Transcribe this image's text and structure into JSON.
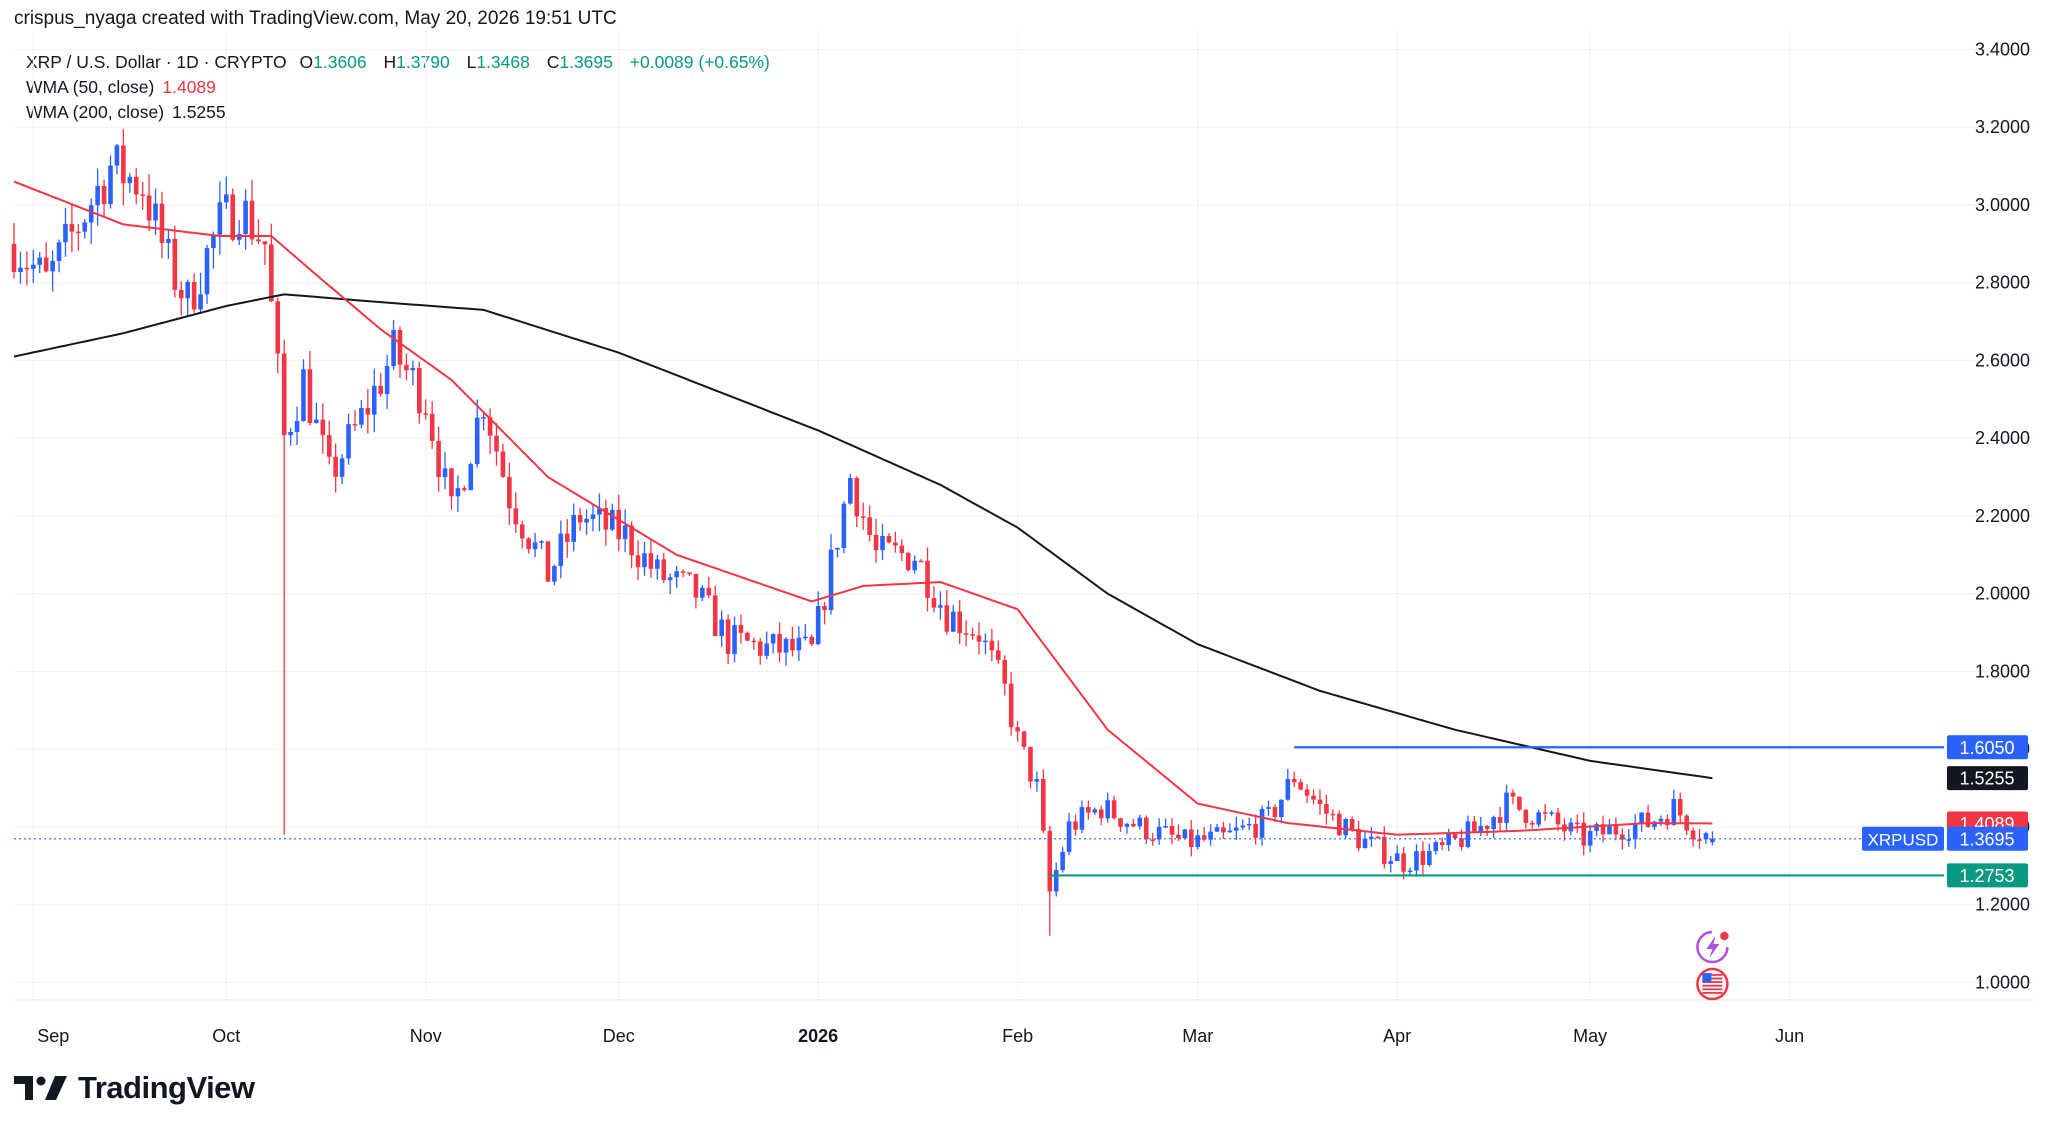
{
  "header": {
    "credit": "crispus_nyaga created with TradingView.com, May 20, 2026 19:51 UTC"
  },
  "legend": {
    "symbol": "XRP / U.S. Dollar · 1D · CRYPTO",
    "open_label": "O",
    "open": "1.3606",
    "high_label": "H",
    "high": "1.3790",
    "low_label": "L",
    "low": "1.3468",
    "close_label": "C",
    "close": "1.3695",
    "change": "+0.0089 (+0.65%)",
    "wma50_label": "WMA (50, close)",
    "wma50": "1.4089",
    "wma200_label": "WMA (200, close)",
    "wma200": "1.5255"
  },
  "brand": {
    "name": "TradingView",
    "logo_icon": "tradingview-logo-icon"
  },
  "colors": {
    "up": "#089981",
    "down": "#f23645",
    "up_candle": "#2962ff",
    "down_candle": "#f23645",
    "wma50": "#f23645",
    "wma200": "#131722",
    "resistance": "#2962ff",
    "support": "#089981",
    "grid": "#f0f3fa"
  },
  "chart_data": {
    "type": "candlestick",
    "symbol": "XRPUSD",
    "interval": "1D",
    "x_tick_labels": [
      "Sep",
      "Oct",
      "Nov",
      "Dec",
      "2026",
      "Feb",
      "Mar",
      "Apr",
      "May",
      "Jun"
    ],
    "x_tick_dates": [
      "2025-09-01",
      "2025-10-01",
      "2025-11-01",
      "2025-12-01",
      "2026-01-01",
      "2026-02-01",
      "2026-03-01",
      "2026-04-01",
      "2026-05-01",
      "2026-06-01"
    ],
    "x_range": [
      "2025-08-29",
      "2026-06-25"
    ],
    "y_tick_labels": [
      "1.0000",
      "1.2000",
      "1.4000",
      "1.6000",
      "1.8000",
      "2.0000",
      "2.2000",
      "2.4000",
      "2.6000",
      "2.8000",
      "3.0000",
      "3.2000",
      "3.4000"
    ],
    "ylim": [
      0.96,
      3.45
    ],
    "price_anchors": [
      [
        "2025-08-29",
        2.9
      ],
      [
        "2025-09-03",
        2.8
      ],
      [
        "2025-09-08",
        2.95
      ],
      [
        "2025-09-13",
        3.1
      ],
      [
        "2025-09-18",
        3.05
      ],
      [
        "2025-09-22",
        2.85
      ],
      [
        "2025-09-25",
        2.75
      ],
      [
        "2025-09-30",
        2.95
      ],
      [
        "2025-10-03",
        3.0
      ],
      [
        "2025-10-07",
        2.9
      ],
      [
        "2025-10-10",
        2.4
      ],
      [
        "2025-10-13",
        2.55
      ],
      [
        "2025-10-17",
        2.3
      ],
      [
        "2025-10-22",
        2.45
      ],
      [
        "2025-10-27",
        2.62
      ],
      [
        "2025-11-01",
        2.5
      ],
      [
        "2025-11-05",
        2.2
      ],
      [
        "2025-11-10",
        2.5
      ],
      [
        "2025-11-14",
        2.25
      ],
      [
        "2025-11-20",
        2.05
      ],
      [
        "2025-11-25",
        2.2
      ],
      [
        "2025-12-02",
        2.15
      ],
      [
        "2025-12-07",
        2.05
      ],
      [
        "2025-12-13",
        2.0
      ],
      [
        "2025-12-18",
        1.88
      ],
      [
        "2025-12-24",
        1.86
      ],
      [
        "2025-12-31",
        1.85
      ],
      [
        "2026-01-02",
        2.0
      ],
      [
        "2026-01-06",
        2.3
      ],
      [
        "2026-01-10",
        2.1
      ],
      [
        "2026-01-16",
        2.1
      ],
      [
        "2026-01-21",
        1.95
      ],
      [
        "2026-01-26",
        1.9
      ],
      [
        "2026-01-30",
        1.75
      ],
      [
        "2026-02-01",
        1.62
      ],
      [
        "2026-02-04",
        1.5
      ],
      [
        "2026-02-06",
        1.23
      ],
      [
        "2026-02-09",
        1.4
      ],
      [
        "2026-02-14",
        1.45
      ],
      [
        "2026-02-20",
        1.4
      ],
      [
        "2026-02-27",
        1.36
      ],
      [
        "2026-03-05",
        1.37
      ],
      [
        "2026-03-12",
        1.42
      ],
      [
        "2026-03-16",
        1.53
      ],
      [
        "2026-03-20",
        1.45
      ],
      [
        "2026-03-26",
        1.37
      ],
      [
        "2026-04-02",
        1.31
      ],
      [
        "2026-04-08",
        1.34
      ],
      [
        "2026-04-14",
        1.4
      ],
      [
        "2026-04-18",
        1.46
      ],
      [
        "2026-04-24",
        1.42
      ],
      [
        "2026-04-30",
        1.37
      ],
      [
        "2026-05-06",
        1.4
      ],
      [
        "2026-05-10",
        1.41
      ],
      [
        "2026-05-14",
        1.45
      ],
      [
        "2026-05-17",
        1.4
      ],
      [
        "2026-05-20",
        1.3695
      ]
    ],
    "spike_lows": [
      [
        "2025-10-10",
        1.38
      ],
      [
        "2026-02-06",
        1.12
      ]
    ],
    "wma50_points": [
      [
        "2025-08-29",
        3.06
      ],
      [
        "2025-09-15",
        2.95
      ],
      [
        "2025-09-30",
        2.92
      ],
      [
        "2025-10-08",
        2.92
      ],
      [
        "2025-10-15",
        2.82
      ],
      [
        "2025-10-25",
        2.68
      ],
      [
        "2025-11-05",
        2.55
      ],
      [
        "2025-11-20",
        2.3
      ],
      [
        "2025-12-10",
        2.1
      ],
      [
        "2025-12-31",
        1.98
      ],
      [
        "2026-01-08",
        2.02
      ],
      [
        "2026-01-20",
        2.03
      ],
      [
        "2026-02-01",
        1.96
      ],
      [
        "2026-02-15",
        1.65
      ],
      [
        "2026-03-01",
        1.46
      ],
      [
        "2026-03-15",
        1.41
      ],
      [
        "2026-04-01",
        1.38
      ],
      [
        "2026-04-20",
        1.39
      ],
      [
        "2026-05-10",
        1.41
      ],
      [
        "2026-05-20",
        1.4089
      ]
    ],
    "wma200_points": [
      [
        "2025-08-29",
        2.61
      ],
      [
        "2025-09-15",
        2.67
      ],
      [
        "2025-10-01",
        2.74
      ],
      [
        "2025-10-10",
        2.77
      ],
      [
        "2025-10-25",
        2.75
      ],
      [
        "2025-11-10",
        2.73
      ],
      [
        "2025-12-01",
        2.62
      ],
      [
        "2026-01-01",
        2.42
      ],
      [
        "2026-01-20",
        2.28
      ],
      [
        "2026-02-01",
        2.17
      ],
      [
        "2026-02-15",
        2.0
      ],
      [
        "2026-03-01",
        1.87
      ],
      [
        "2026-03-20",
        1.75
      ],
      [
        "2026-04-10",
        1.65
      ],
      [
        "2026-05-01",
        1.57
      ],
      [
        "2026-05-20",
        1.5255
      ]
    ],
    "resistance_line": {
      "value": 1.605,
      "from": "2026-03-16",
      "to_edge": true
    },
    "support_line": {
      "value": 1.2753,
      "from": "2026-02-06",
      "to_edge": true
    },
    "last_price_line": {
      "value": 1.3695
    },
    "price_badges": [
      {
        "label": "",
        "value": "1.6050",
        "color": "#2962ff"
      },
      {
        "label": "",
        "value": "1.5255",
        "color": "#131722"
      },
      {
        "label": "",
        "value": "1.4089",
        "color": "#f23645"
      },
      {
        "label": "XRPUSD",
        "value": "1.3695",
        "color": "#2962ff"
      },
      {
        "label": "",
        "value": "1.2753",
        "color": "#089981"
      }
    ],
    "event_icons": [
      "lightning-event-icon",
      "us-flag-event-icon"
    ],
    "grid": true,
    "legend_position": "top-left"
  }
}
